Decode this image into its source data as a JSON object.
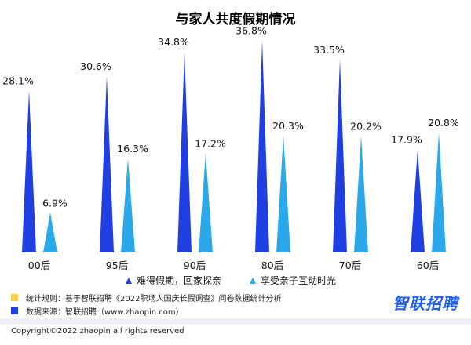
{
  "chart_data": {
    "type": "bar",
    "title": "与家人共度假期情况",
    "categories": [
      "00后",
      "95后",
      "90后",
      "80后",
      "70后",
      "60后"
    ],
    "series": [
      {
        "name": "难得假期，回家探亲",
        "values": [
          28.1,
          30.6,
          34.8,
          36.8,
          33.5,
          17.9
        ],
        "labels": [
          "28.1%",
          "30.6%",
          "34.8%",
          "36.8%",
          "33.5%",
          "17.9%"
        ],
        "color": "#1f3fe0"
      },
      {
        "name": "享受亲子互动时光",
        "values": [
          6.9,
          16.3,
          17.2,
          20.3,
          20.2,
          20.8
        ],
        "labels": [
          "6.9%",
          "16.3%",
          "17.2%",
          "20.3%",
          "20.2%",
          "20.8%"
        ],
        "color": "#2aa8ea"
      }
    ],
    "ylim": [
      0,
      40
    ],
    "legend_position": "bottom"
  },
  "notes": {
    "rule": "统计规则：基于智联招聘《2022职场人国庆长假调查》问卷数据统计分析",
    "source": "数据来源：智联招聘（www.zhaopin.com）",
    "rule_color": "#f7cf4a",
    "source_color": "#1f3fe0"
  },
  "brand": "智联招聘",
  "copyright": "Copyright©2022 zhaopin all rights reserved"
}
